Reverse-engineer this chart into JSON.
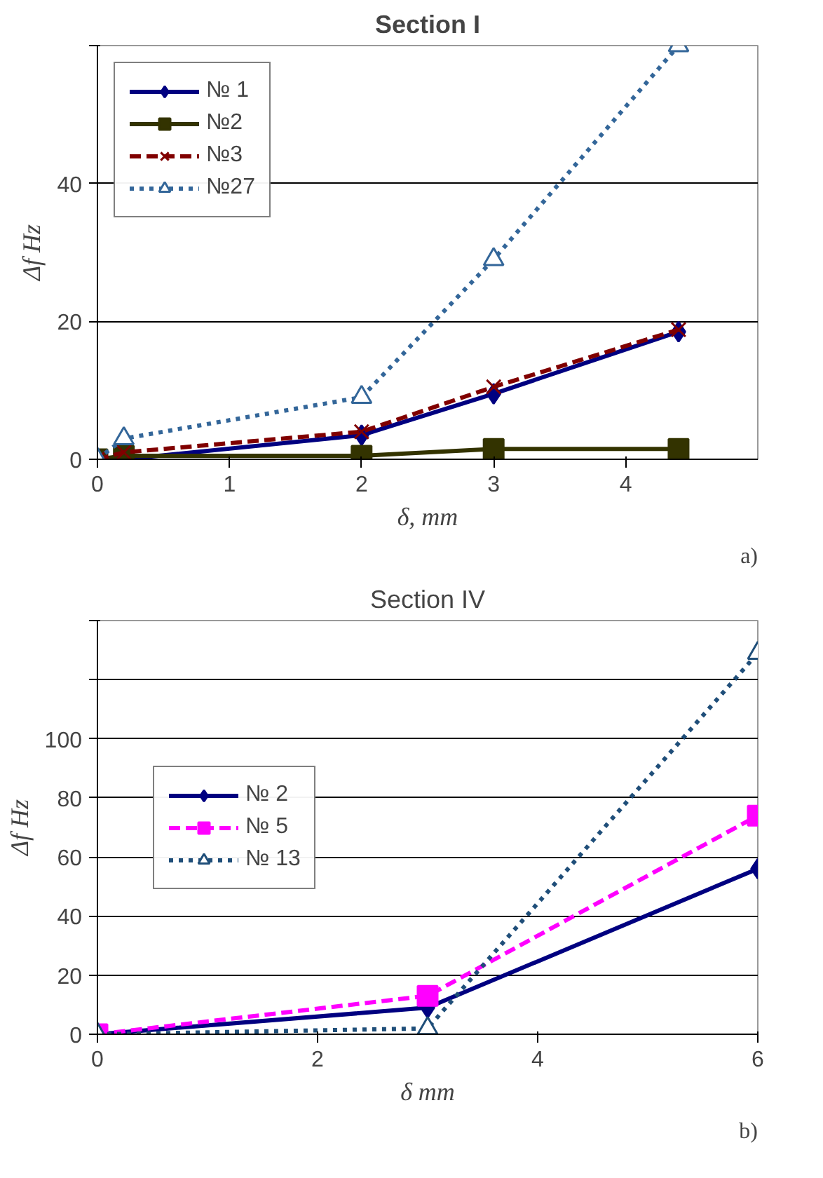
{
  "chart_data": [
    {
      "type": "line",
      "title": "Section I",
      "xlabel": "δ, mm",
      "ylabel": "Δf Hz",
      "x": [
        0,
        0.2,
        2,
        3,
        4.4
      ],
      "xlim": [
        0,
        5
      ],
      "xticks": [
        0,
        1,
        2,
        3,
        4
      ],
      "ylim": [
        0,
        60
      ],
      "yticks": [
        0,
        20,
        40,
        {
          "value": 60,
          "label": null
        }
      ],
      "grid": "y",
      "legend": "top left",
      "annotations": [
        "a)"
      ],
      "series": [
        {
          "name": "№ 1",
          "color": "#000080",
          "values": [
            0,
            0,
            3.5,
            9.5,
            18.5
          ],
          "marker": "diamond",
          "line_style": "solid"
        },
        {
          "name": "№2",
          "color": "#333300",
          "values": [
            0,
            0.5,
            0.5,
            1.5,
            1.5
          ],
          "marker": "square",
          "line_style": "solid"
        },
        {
          "name": "№3",
          "color": "#800000",
          "values": [
            0,
            1,
            4,
            10.5,
            18.8
          ],
          "marker": "cross",
          "line_style": "dashed"
        },
        {
          "name": "№27",
          "color": "#336699",
          "values": [
            0,
            3,
            9,
            29,
            60
          ],
          "marker": "triangle",
          "line_style": "dotted"
        }
      ]
    },
    {
      "type": "line",
      "title": "Section IV",
      "xlabel": "δ mm",
      "ylabel": "Δf Hz",
      "x": [
        0,
        3,
        6
      ],
      "xlim": [
        0,
        6
      ],
      "xticks": [
        0,
        2,
        4,
        6
      ],
      "ylim": [
        0,
        140
      ],
      "yticks": [
        0,
        20,
        40,
        60,
        80,
        100,
        {
          "value": 120,
          "label": null
        },
        {
          "value": 140,
          "label": null
        }
      ],
      "grid": "y",
      "legend": "left",
      "annotations": [
        "b)"
      ],
      "series": [
        {
          "name": "№ 2",
          "color": "#000080",
          "values": [
            0,
            9,
            56
          ],
          "marker": "diamond",
          "line_style": "solid"
        },
        {
          "name": "№ 5",
          "color": "#ff00ff",
          "values": [
            0,
            13,
            74
          ],
          "marker": "square",
          "line_style": "dashed"
        },
        {
          "name": "№ 13",
          "color": "#1f4e79",
          "values": [
            0,
            2,
            129
          ],
          "marker": "triangle",
          "line_style": "dotted"
        }
      ]
    }
  ]
}
